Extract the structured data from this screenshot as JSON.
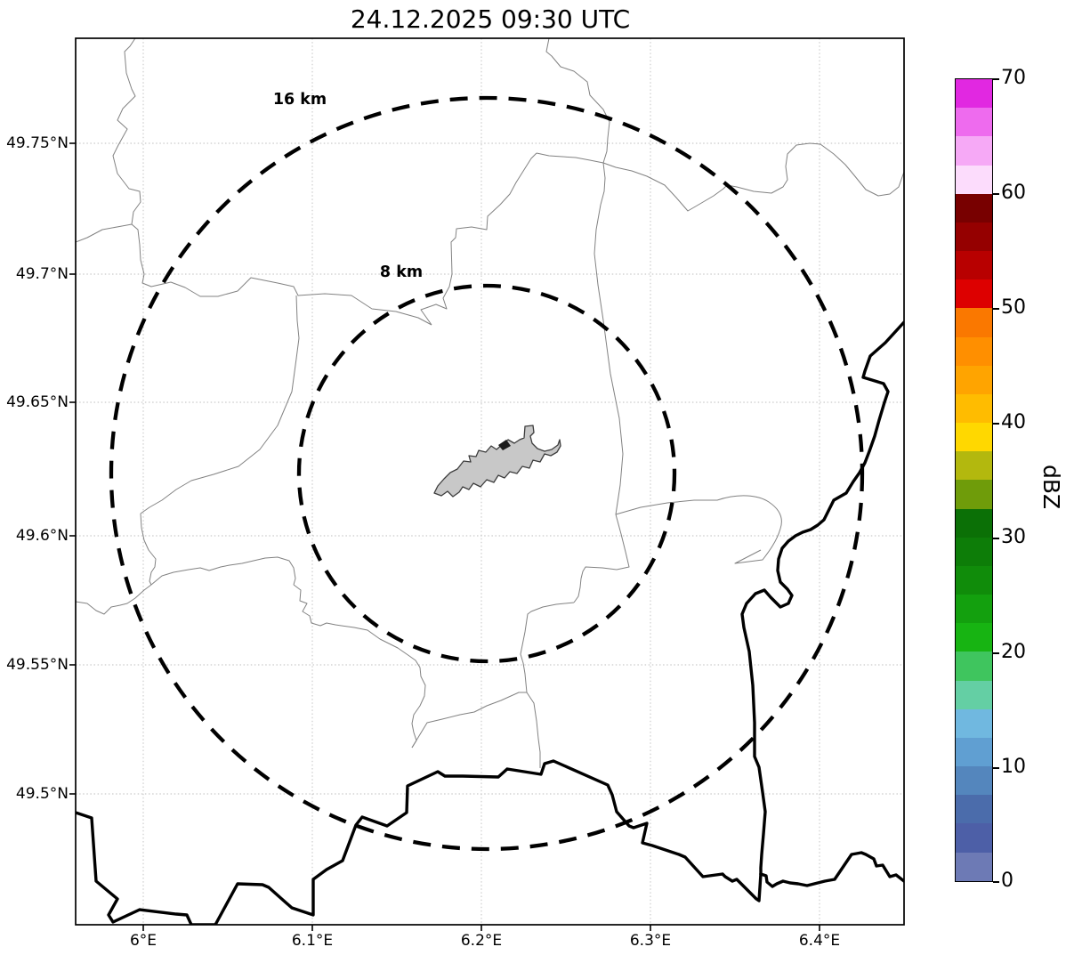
{
  "title": "24.12.2025 09:30 UTC",
  "map": {
    "range_rings": [
      {
        "label": "16 km",
        "radius_km": 16
      },
      {
        "label": "8 km",
        "radius_km": 8
      }
    ]
  },
  "axes": {
    "x_ticks": [
      "6°E",
      "6.1°E",
      "6.2°E",
      "6.3°E",
      "6.4°E"
    ],
    "y_ticks": [
      "49.75°N",
      "49.7°N",
      "49.65°N",
      "49.6°N",
      "49.55°N",
      "49.5°N"
    ]
  },
  "colorbar": {
    "label": "dBZ",
    "tick_labels": [
      "70",
      "60",
      "50",
      "40",
      "30",
      "20",
      "10",
      "0"
    ],
    "segments_top_to_bottom": [
      "#e128e1",
      "#ee6bee",
      "#f6a9f6",
      "#fcdcfc",
      "#780000",
      "#950000",
      "#b80000",
      "#dd0000",
      "#fa7800",
      "#ff8f00",
      "#ffa400",
      "#ffbc00",
      "#ffd800",
      "#b3b80e",
      "#6f9c0a",
      "#0b7006",
      "#0d7d08",
      "#108c0a",
      "#13a00e",
      "#17b412",
      "#3fc55e",
      "#64cfa4",
      "#70b8e0",
      "#609fd2",
      "#5486bd",
      "#4b6cab",
      "#4d5fa7",
      "#6d7ab5"
    ]
  },
  "colors": {
    "grid": "#bdbdbd",
    "thin_border": "#828282",
    "thick_border": "#000000",
    "ring": "#000000",
    "city_fill": "#c8c8c8",
    "city_stroke": "#3d3d3d",
    "city_mark": "#1c1c1c"
  },
  "chart_data": {
    "type": "map",
    "title": "24.12.2025 09:30 UTC",
    "projection": "lat/lon grid",
    "extent": {
      "lon_min": 5.96,
      "lon_max": 6.45,
      "lat_min": 49.455,
      "lat_max": 49.79
    },
    "x_tick_values": [
      6.0,
      6.1,
      6.2,
      6.3,
      6.4
    ],
    "y_tick_values": [
      49.75,
      49.7,
      49.65,
      49.6,
      49.55,
      49.5
    ],
    "radar_site": {
      "lon": 6.2,
      "lat": 49.62
    },
    "range_rings_km": [
      8,
      16
    ],
    "colorbar_scale": {
      "units": "dBZ",
      "min": 0,
      "max": 70,
      "segment_step": 2.5,
      "ticks": [
        0,
        10,
        20,
        30,
        40,
        50,
        60,
        70
      ]
    },
    "reflectivity_echoes": "none visible (clear map, no precipitation plotted)"
  }
}
